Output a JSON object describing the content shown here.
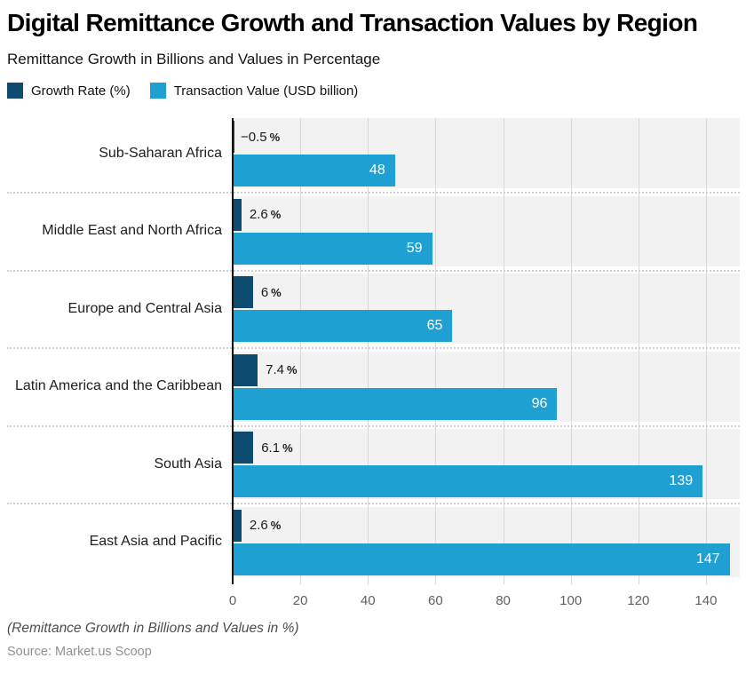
{
  "header": {
    "title": "Digital Remittance Growth and Transaction Values by Region",
    "subtitle": "Remittance Growth in Billions and Values in Percentage"
  },
  "legend": [
    {
      "label": "Growth Rate (%)",
      "color": "#0e4b70",
      "pattern": "dots"
    },
    {
      "label": "Transaction Value (USD billion)",
      "color": "#1fa0d2",
      "pattern": "solid"
    }
  ],
  "chart_data": {
    "type": "bar",
    "orientation": "horizontal",
    "title": "Digital Remittance Growth and Transaction Values by Region",
    "subtitle": "Remittance Growth in Billions and Values in Percentage",
    "categories": [
      "Sub-Saharan Africa",
      "Middle East and North Africa",
      "Europe and Central Asia",
      "Latin America and the Caribbean",
      "South Asia",
      "East Asia and Pacific"
    ],
    "series": [
      {
        "name": "Growth Rate (%)",
        "color": "#0e4b70",
        "values": [
          -0.5,
          2.6,
          6,
          7.4,
          6.1,
          2.6
        ],
        "labels": [
          "−0.5 %",
          "2.6 %",
          "6 %",
          "7.4 %",
          "6.1 %",
          "2.6 %"
        ],
        "label_position": "outside"
      },
      {
        "name": "Transaction Value (USD billion)",
        "color": "#1fa0d2",
        "values": [
          48,
          59,
          65,
          96,
          139,
          147
        ],
        "labels": [
          "48",
          "59",
          "65",
          "96",
          "139",
          "147"
        ],
        "label_position": "inside"
      }
    ],
    "xlim": [
      0,
      150
    ],
    "x_ticks": [
      0,
      20,
      40,
      60,
      80,
      100,
      120,
      140
    ],
    "grid": true,
    "legend_position": "top",
    "band_color": "#f2f2f2",
    "grid_color": "#d8d8d8"
  },
  "footer": {
    "note": "(Remittance Growth in Billions and Values in %)",
    "source": "Source: Market.us Scoop"
  }
}
